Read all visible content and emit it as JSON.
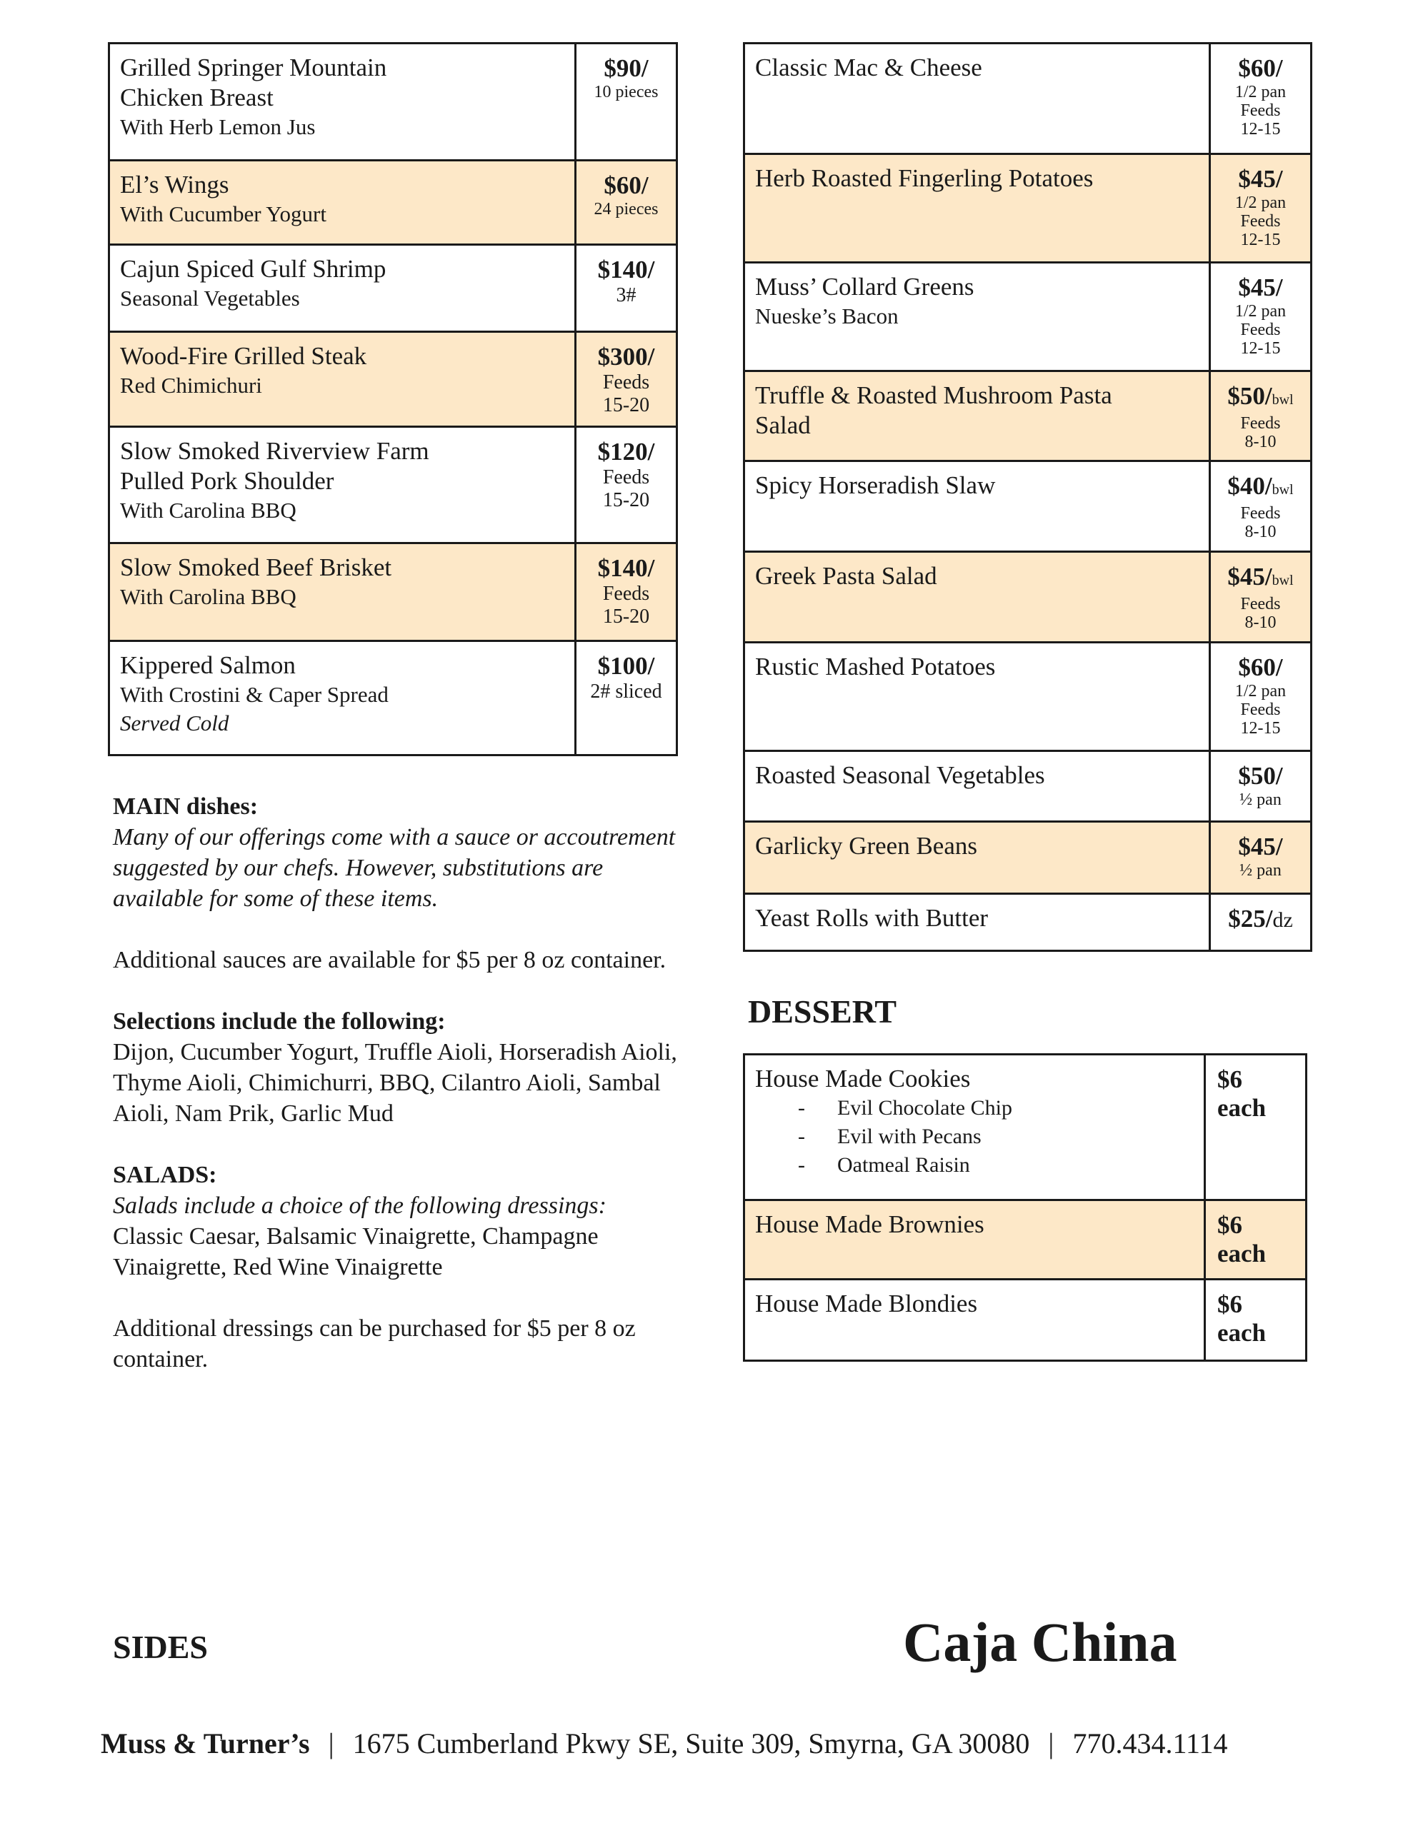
{
  "colors": {
    "highlight": "#fde8c8",
    "border": "#1a1a1a"
  },
  "mains": [
    {
      "name": [
        "Grilled Springer Mountain",
        "Chicken Breast"
      ],
      "sub": [
        "With Herb Lemon Jus"
      ],
      "price": "$90/",
      "notes": [
        "10 pieces"
      ],
      "highlight": false
    },
    {
      "name": [
        "El’s Wings"
      ],
      "sub": [
        "With Cucumber Yogurt"
      ],
      "price": "$60/",
      "notes": [
        "24  pieces"
      ],
      "highlight": true
    },
    {
      "name": [
        "Cajun Spiced Gulf Shrimp"
      ],
      "sub": [
        "Seasonal Vegetables"
      ],
      "price": "$140/",
      "notes": [
        "3#"
      ],
      "highlight": false
    },
    {
      "name": [
        "Wood-Fire Grilled Steak"
      ],
      "sub": [
        "Red Chimichuri"
      ],
      "price": "$300/",
      "notes": [
        "Feeds",
        "15-20"
      ],
      "highlight": true
    },
    {
      "name": [
        "Slow Smoked Riverview Farm",
        "Pulled Pork Shoulder"
      ],
      "sub": [
        "With Carolina BBQ"
      ],
      "price": "$120/",
      "notes": [
        "Feeds",
        "15-20"
      ],
      "highlight": false
    },
    {
      "name": [
        "Slow Smoked Beef Brisket"
      ],
      "sub": [
        "With Carolina BBQ"
      ],
      "price": "$140/",
      "notes": [
        "Feeds",
        "15-20"
      ],
      "highlight": true
    },
    {
      "name": [
        "Kippered Salmon"
      ],
      "sub": [
        "With Crostini & Caper Spread"
      ],
      "italic": "Served Cold",
      "price": "$100/",
      "notes": [
        "2# sliced"
      ],
      "highlight": false
    }
  ],
  "sides": [
    {
      "name": [
        "Classic Mac & Cheese"
      ],
      "price": "$60/",
      "notes": [
        "1/2 pan",
        "Feeds",
        "12-15"
      ],
      "highlight": false
    },
    {
      "name": [
        "Herb Roasted Fingerling Potatoes"
      ],
      "price": "$45/",
      "notes": [
        "1/2 pan",
        "Feeds",
        "12-15"
      ],
      "highlight": true
    },
    {
      "name": [
        "Muss’ Collard Greens"
      ],
      "sub": [
        "Nueske’s Bacon"
      ],
      "price": "$45/",
      "notes": [
        "1/2 pan",
        "Feeds",
        "12-15"
      ],
      "highlight": false
    },
    {
      "name": [
        "Truffle & Roasted Mushroom Pasta",
        "Salad"
      ],
      "price": "$50/",
      "unit": "bwl",
      "notes": [
        "Feeds",
        "8-10"
      ],
      "highlight": true
    },
    {
      "name": [
        "Spicy Horseradish Slaw"
      ],
      "price": "$40/",
      "unit": "bwl",
      "notes": [
        "Feeds",
        "8-10"
      ],
      "highlight": false
    },
    {
      "name": [
        "Greek Pasta Salad"
      ],
      "price": "$45/",
      "unit": "bwl",
      "notes": [
        "Feeds",
        "8-10"
      ],
      "highlight": true
    },
    {
      "name": [
        "Rustic Mashed Potatoes"
      ],
      "price": "$60/",
      "notes": [
        "1/2 pan",
        "Feeds",
        "12-15"
      ],
      "highlight": false
    },
    {
      "name": [
        "Roasted Seasonal Vegetables"
      ],
      "price": "$50/",
      "notes": [
        "½ pan"
      ],
      "highlight": false
    },
    {
      "name": [
        "Garlicky Green Beans"
      ],
      "price": "$45/",
      "notes": [
        "½ pan"
      ],
      "highlight": true
    },
    {
      "name": [
        "Yeast Rolls with Butter"
      ],
      "price": "$25/",
      "unit2": "dz",
      "notes": [],
      "highlight": false
    }
  ],
  "dessert_heading": "DESSERT",
  "desserts": [
    {
      "name": [
        "House Made Cookies"
      ],
      "bullets": [
        "Evil Chocolate Chip",
        "Evil with Pecans",
        "Oatmeal Raisin"
      ],
      "price": "$6",
      "each": "each",
      "highlight": false
    },
    {
      "name": [
        "House Made Brownies"
      ],
      "price": "$6",
      "each": "each",
      "highlight": true
    },
    {
      "name": [
        "House Made Blondies"
      ],
      "price": "$6",
      "each": "each",
      "highlight": false
    }
  ],
  "notes": {
    "main_title": "MAIN dishes:",
    "main_text": "Many of our offerings come with a sauce or accoutrement suggested by our chefs. However, substitutions are available for some of these items.",
    "sauces": "Additional sauces are available for $5 per 8 oz container.",
    "selections_title": "Selections include the following:",
    "selections": "Dijon, Cucumber Yogurt, Truffle Aioli, Horseradish Aioli, Thyme Aioli, Chimichurri, BBQ, Cilantro Aioli, Sambal Aioli, Nam Prik, Garlic Mud",
    "salads_title": "SALADS:",
    "salads_italic": "Salads include a choice of the following dressings:",
    "dressings": "Classic Caesar, Balsamic Vinaigrette, Champagne Vinaigrette, Red Wine Vinaigrette",
    "additional_dressings": "Additional dressings can be purchased for $5 per 8 oz container."
  },
  "sides_heading": "SIDES",
  "brand": "Caja China",
  "footer": {
    "name": "Muss & Turner’s",
    "sep": "|",
    "address": "1675 Cumberland Pkwy SE, Suite 309, Smyrna, GA 30080",
    "phone": "770.434.1114"
  }
}
